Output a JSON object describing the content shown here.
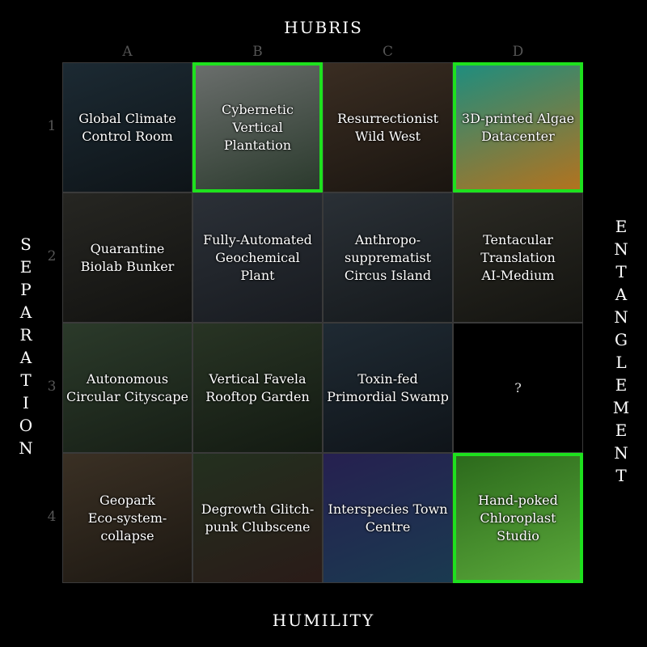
{
  "axes": {
    "top": "HUBRIS",
    "bottom": "HUMILITY",
    "left": "SEPARATION",
    "right": "ENTANGLEMENT"
  },
  "columns": [
    "A",
    "B",
    "C",
    "D"
  ],
  "rows": [
    "1",
    "2",
    "3",
    "4"
  ],
  "cells": [
    {
      "label": "Global Climate\nControl Room",
      "highlighted": false,
      "bg": "#1c2a33",
      "bg2": "#0e1418"
    },
    {
      "label": "Cybernetic\nVertical Plantation",
      "highlighted": true,
      "bg": "#6a6e6c",
      "bg2": "#2b3a2d"
    },
    {
      "label": "Resurrectionist\nWild West",
      "highlighted": false,
      "bg": "#3a2d22",
      "bg2": "#1a1510"
    },
    {
      "label": "3D-printed Algae\nDatacenter",
      "highlighted": true,
      "bg": "#1f8d7e",
      "bg2": "#b2731f"
    },
    {
      "label": "Quarantine\nBiolab Bunker",
      "highlighted": false,
      "bg": "#262622",
      "bg2": "#121210"
    },
    {
      "label": "Fully-Automated\nGeochemical\nPlant",
      "highlighted": false,
      "bg": "#2b3037",
      "bg2": "#181b20"
    },
    {
      "label": "Anthropo-\nsupprematist\nCircus Island",
      "highlighted": false,
      "bg": "#2a3036",
      "bg2": "#15191c"
    },
    {
      "label": "Tentacular\nTranslation\nAI-Medium",
      "highlighted": false,
      "bg": "#2b2a24",
      "bg2": "#141410"
    },
    {
      "label": "Autonomous\nCircular Cityscape",
      "highlighted": false,
      "bg": "#2b3a2a",
      "bg2": "#171f16"
    },
    {
      "label": "Vertical Favela\nRooftop Garden",
      "highlighted": false,
      "bg": "#283424",
      "bg2": "#131a12"
    },
    {
      "label": "Toxin-fed\nPrimordial Swamp",
      "highlighted": false,
      "bg": "#1f2a33",
      "bg2": "#0f1419"
    },
    {
      "label": "?",
      "highlighted": false,
      "empty": true,
      "bg": "#000000",
      "bg2": "#000000"
    },
    {
      "label": "Geopark\nEco-system-\ncollapse",
      "highlighted": false,
      "bg": "#3a3024",
      "bg2": "#1d1812"
    },
    {
      "label": "Degrowth Glitch-\npunk Clubscene",
      "highlighted": false,
      "bg": "#23301f",
      "bg2": "#2a1b18"
    },
    {
      "label": "Interspecies Town\nCentre",
      "highlighted": false,
      "bg": "#262050",
      "bg2": "#1a3a50"
    },
    {
      "label": "Hand-poked\nChloroplast\nStudio",
      "highlighted": true,
      "bg": "#2c6a1c",
      "bg2": "#5aa83a"
    }
  ],
  "colors": {
    "highlight": "#1ee11e",
    "grid_line": "#3a3a3a",
    "index_text": "#555555"
  }
}
